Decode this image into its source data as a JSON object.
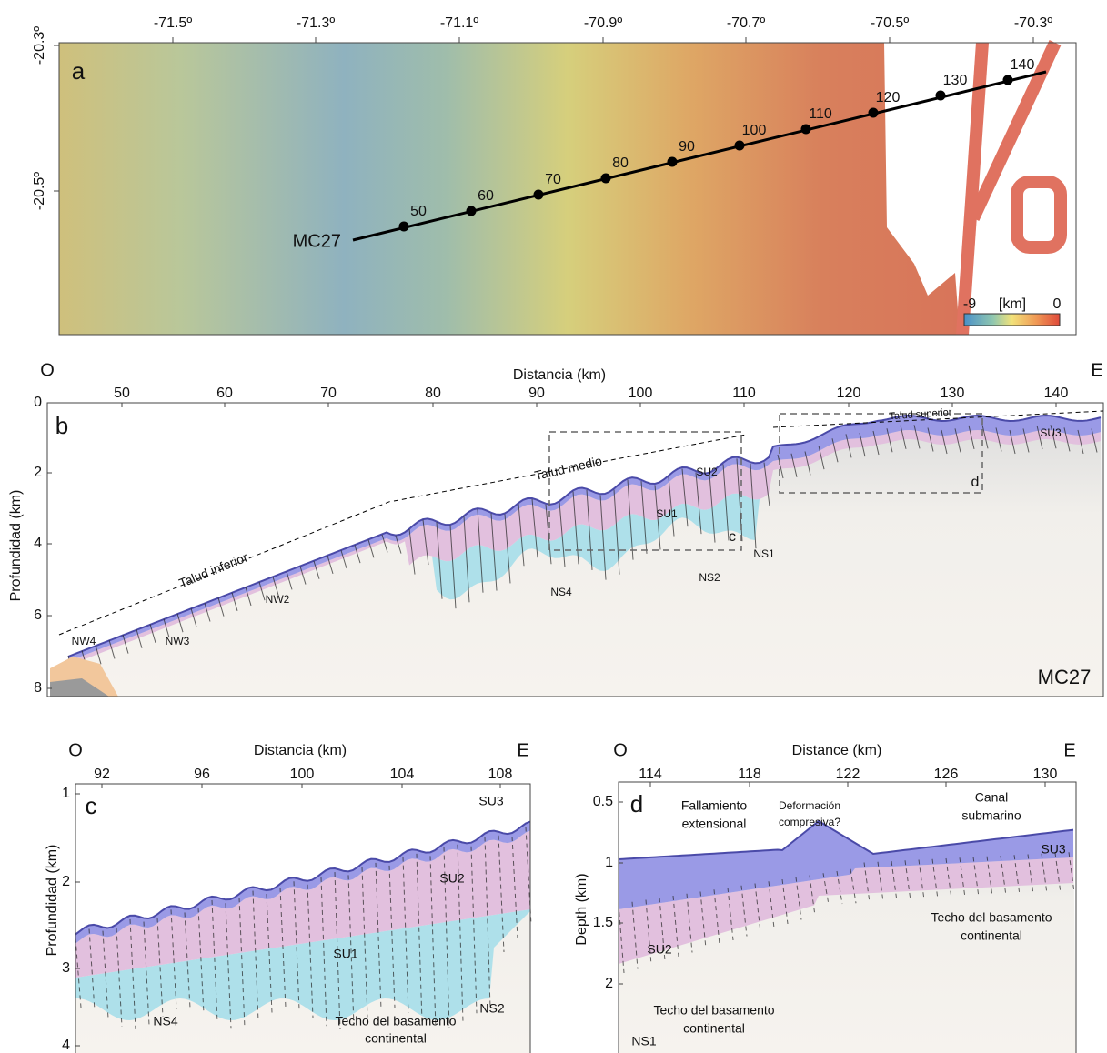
{
  "panel_a": {
    "label": "a",
    "x_ticks": [
      "-71.5º",
      "-71.3º",
      "-71.1º",
      "-70.9º",
      "-70.7º",
      "-70.5º",
      "-70.3º"
    ],
    "y_ticks": [
      "-20.3º",
      "-20.5º"
    ],
    "line_name": "MC27",
    "km_marks": [
      "50",
      "60",
      "70",
      "80",
      "90",
      "100",
      "110",
      "120",
      "130",
      "140"
    ],
    "colorbar": {
      "min": "-9",
      "unit": "[km]",
      "max": "0"
    }
  },
  "panel_b": {
    "label": "b",
    "west": "O",
    "east": "E",
    "x_title": "Distancia (km)",
    "y_title": "Profundidad (km)",
    "x_ticks": [
      "50",
      "60",
      "70",
      "80",
      "90",
      "100",
      "110",
      "120",
      "130",
      "140"
    ],
    "y_ticks": [
      "0",
      "2",
      "4",
      "6",
      "8"
    ],
    "line_name": "MC27",
    "annotations": [
      "Talud inferior",
      "Talud medio",
      "Talud superior",
      "SU1",
      "SU2",
      "SU3",
      "NW2",
      "NW3",
      "NW4",
      "NS1",
      "NS2",
      "NS4",
      "c",
      "d"
    ]
  },
  "panel_c": {
    "label": "c",
    "west": "O",
    "east": "E",
    "x_title": "Distancia (km)",
    "y_title": "Profundidad (km)",
    "x_ticks": [
      "92",
      "96",
      "100",
      "104",
      "108"
    ],
    "y_ticks": [
      "1",
      "2",
      "3",
      "4"
    ],
    "annotations": [
      "SU3",
      "SU2",
      "SU1",
      "NS4",
      "NS2"
    ],
    "basement": [
      "Techo del basamento",
      "continental"
    ]
  },
  "panel_d": {
    "label": "d",
    "west": "O",
    "east": "E",
    "x_title": "Distance (km)",
    "y_title": "Depth (km)",
    "x_ticks": [
      "114",
      "118",
      "122",
      "126",
      "130"
    ],
    "y_ticks": [
      "0.5",
      "1",
      "1.5",
      "2"
    ],
    "annotations": [
      "SU3",
      "SU2",
      "NS1"
    ],
    "faulting": [
      "Fallamiento",
      "extensional"
    ],
    "compression": [
      "Deformación",
      "compresiva?"
    ],
    "channel": [
      "Canal",
      "submarino"
    ],
    "basement_left": [
      "Techo del basamento",
      "continental"
    ],
    "basement_right": [
      "Techo del basamento",
      "continental"
    ]
  }
}
